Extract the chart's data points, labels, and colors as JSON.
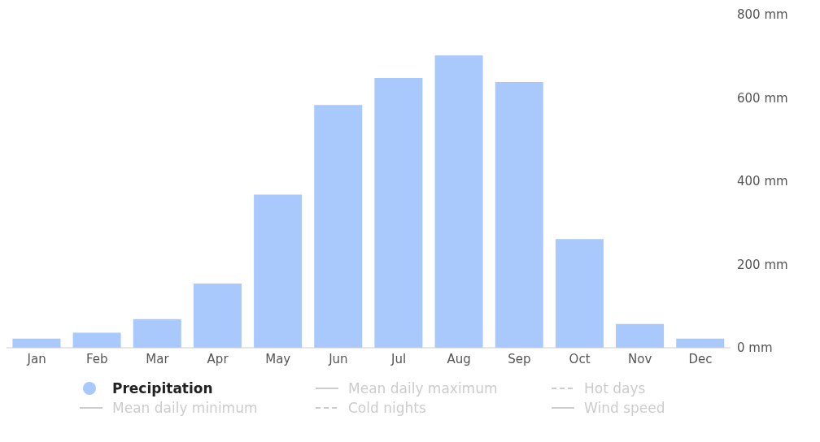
{
  "chart_data": {
    "type": "bar",
    "categories": [
      "Jan",
      "Feb",
      "Mar",
      "Apr",
      "May",
      "Jun",
      "Jul",
      "Aug",
      "Sep",
      "Oct",
      "Nov",
      "Dec"
    ],
    "series": [
      {
        "name": "Precipitation",
        "color": "#a9c8fb",
        "values": [
          22,
          36,
          69,
          154,
          368,
          583,
          648,
          702,
          638,
          261,
          57,
          22
        ]
      },
      {
        "name": "Mean daily maximum",
        "type": "line",
        "color": "#cccccc",
        "line_style": "solid",
        "values": [
          null,
          null,
          null,
          null,
          null,
          null,
          null,
          null,
          null,
          null,
          null,
          null
        ]
      },
      {
        "name": "Hot days",
        "type": "line",
        "color": "#cccccc",
        "line_style": "dashed",
        "values": [
          null,
          null,
          null,
          null,
          null,
          null,
          null,
          null,
          null,
          null,
          null,
          null
        ]
      },
      {
        "name": "Mean daily minimum",
        "type": "line",
        "color": "#cccccc",
        "line_style": "solid",
        "values": [
          null,
          null,
          null,
          null,
          null,
          null,
          null,
          null,
          null,
          null,
          null,
          null
        ]
      },
      {
        "name": "Cold nights",
        "type": "line",
        "color": "#cccccc",
        "line_style": "dashed",
        "values": [
          null,
          null,
          null,
          null,
          null,
          null,
          null,
          null,
          null,
          null,
          null,
          null
        ]
      },
      {
        "name": "Wind speed",
        "type": "line",
        "color": "#cccccc",
        "line_style": "solid",
        "values": [
          null,
          null,
          null,
          null,
          null,
          null,
          null,
          null,
          null,
          null,
          null,
          null
        ]
      }
    ],
    "ylim": [
      0,
      800
    ],
    "yticks": [
      {
        "value": 0,
        "label": "0 mm"
      },
      {
        "value": 200,
        "label": "200 mm"
      },
      {
        "value": 400,
        "label": "400 mm"
      },
      {
        "value": 600,
        "label": "600 mm"
      },
      {
        "value": 800,
        "label": "800 mm"
      }
    ],
    "grid": false,
    "legend": "bottom"
  }
}
